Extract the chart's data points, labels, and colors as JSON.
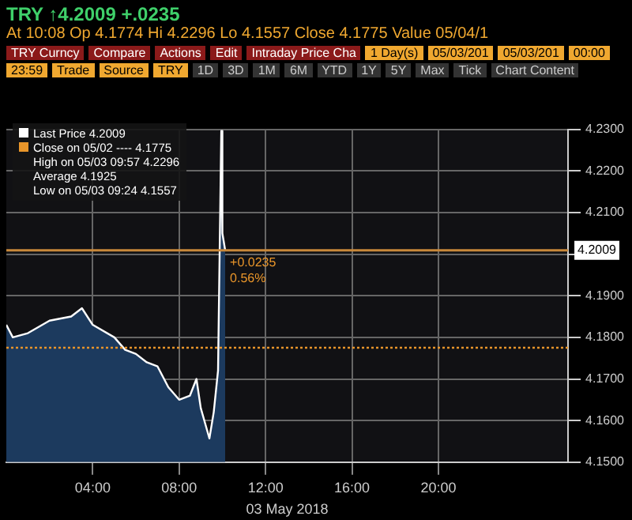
{
  "chart_data": {
    "type": "area",
    "title": "TRY ↑4.2009 +.0235",
    "subtitle": "At 10:08 Op 4.1774 Hi 4.2296 Lo 4.1557 Close 4.1775 Value 05/04/1",
    "xlabel": "03 May 2018",
    "annotations": [
      "High on 05/03 09:57 4.2296",
      "Average 4.1925",
      "Low on 05/03 09:24 4.1557",
      {
        "text": "+0.0235 0.56%",
        "x": 10.13,
        "y": 4.2009
      },
      "TRY Curncy",
      "Compare",
      "Actions",
      "Edit",
      "Intraday Price Cha",
      "1 Day(s)",
      "05/03/201",
      "05/03/201",
      "00:00",
      "23:59",
      "Trade",
      "Source",
      "TRY",
      "1D",
      "3D",
      "1M",
      "6M",
      "YTD",
      "1Y",
      "5Y",
      "Max",
      "Tick",
      "Chart Content"
    ],
    "x": [
      0,
      0.3,
      1,
      2,
      3,
      3.5,
      4,
      5,
      5.5,
      6,
      6.5,
      7,
      7.5,
      8,
      8.5,
      8.8,
      9,
      9.4,
      9.6,
      9.8,
      9.95,
      10,
      10.13
    ],
    "series": [
      {
        "name": "Last Price",
        "color": "#ffffff",
        "values": [
          4.183,
          4.18,
          4.181,
          4.184,
          4.185,
          4.187,
          4.183,
          4.18,
          4.177,
          4.176,
          4.174,
          4.173,
          4.168,
          4.165,
          4.166,
          4.17,
          4.163,
          4.1557,
          4.162,
          4.172,
          4.2296,
          4.205,
          4.2009
        ]
      }
    ],
    "xlim": [
      0,
      26
    ],
    "xticks": [
      {
        "value": 4,
        "label": "04:00"
      },
      {
        "value": 8,
        "label": "08:00"
      },
      {
        "value": 12,
        "label": "12:00"
      },
      {
        "value": 16,
        "label": "16:00"
      },
      {
        "value": 20,
        "label": "20:00"
      }
    ],
    "ylim": [
      4.15,
      4.23
    ],
    "yticks": [
      {
        "value": 4.15,
        "label": "4.1500"
      },
      {
        "value": 4.16,
        "label": "4.1600"
      },
      {
        "value": 4.17,
        "label": "4.1700"
      },
      {
        "value": 4.18,
        "label": "4.1800"
      },
      {
        "value": 4.19,
        "label": "4.1900"
      },
      {
        "value": 4.2,
        "label": null
      },
      {
        "value": 4.21,
        "label": "4.2100"
      },
      {
        "value": 4.22,
        "label": "4.2200"
      },
      {
        "value": 4.23,
        "label": "4.2300"
      }
    ],
    "ref_lines": [
      {
        "axis": "y",
        "value": 4.1775,
        "label": "Close on 05/02 ---- 4.1775",
        "color": "#e8952a",
        "line_style": "dotted"
      },
      {
        "axis": "y",
        "value": 4.2009,
        "label": "4.2009",
        "color": "#c8883a",
        "line_style": "solid"
      }
    ],
    "grid": true,
    "legend": "top left",
    "marker": "none"
  }
}
